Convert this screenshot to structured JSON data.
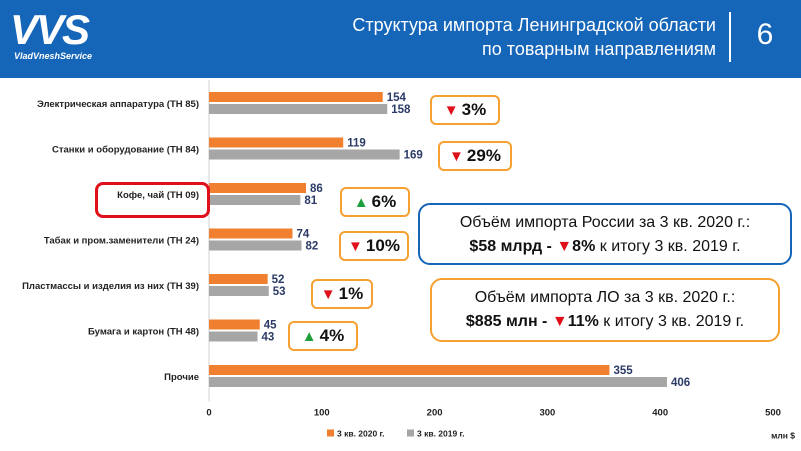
{
  "header": {
    "logo_main": "VVS",
    "logo_sub": "VladVneshService",
    "title_line1": "Структура импорта Ленинградской области",
    "title_line2": "по товарным направлениям",
    "page_number": "6"
  },
  "colors": {
    "header_bg": "#1565b8",
    "series_2020": "#f08030",
    "series_2019": "#a6a6a6",
    "badge_border": "#f5a030",
    "down": "#e0101a",
    "up": "#1e9e3a",
    "highlight": "#e0101a"
  },
  "changes": [
    {
      "direction": "down",
      "text": "3%"
    },
    {
      "direction": "down",
      "text": "29%"
    },
    {
      "direction": "up",
      "text": "6%"
    },
    {
      "direction": "down",
      "text": "10%"
    },
    {
      "direction": "down",
      "text": "1%"
    },
    {
      "direction": "up",
      "text": "4%"
    }
  ],
  "info_russia": {
    "line1": "Объём импорта России за 3 кв. 2020 г.:",
    "amount": "$58 млрд -",
    "change": "8%",
    "rest": "к итогу 3 кв. 2019 г."
  },
  "info_lo": {
    "line1": "Объём импорта ЛО за 3 кв. 2020 г.:",
    "amount": "$885 млн -",
    "change": "11%",
    "rest": "к итогу 3 кв. 2019 г."
  },
  "highlighted_category": "Кофе, чай (ТН 09)",
  "chart_data": {
    "type": "bar",
    "orientation": "horizontal",
    "categories": [
      "Электрическая аппаратура (ТН 85)",
      "Станки и оборудование (ТН 84)",
      "Кофе, чай (ТН 09)",
      "Табак и пром.заменители (ТН 24)",
      "Пластмассы и изделия из них (ТН 39)",
      "Бумага и картон (ТН 48)",
      "Прочие"
    ],
    "series": [
      {
        "name": "3 кв. 2020 г.",
        "values": [
          154,
          119,
          86,
          74,
          52,
          45,
          355
        ]
      },
      {
        "name": "3 кв. 2019 г.",
        "values": [
          158,
          169,
          81,
          82,
          53,
          43,
          406
        ]
      }
    ],
    "xlim": [
      0,
      500
    ],
    "xticks": [
      "0",
      "100",
      "200",
      "300",
      "400",
      "500"
    ],
    "xlabel": "млн $",
    "legend_position": "bottom",
    "grid": false
  }
}
